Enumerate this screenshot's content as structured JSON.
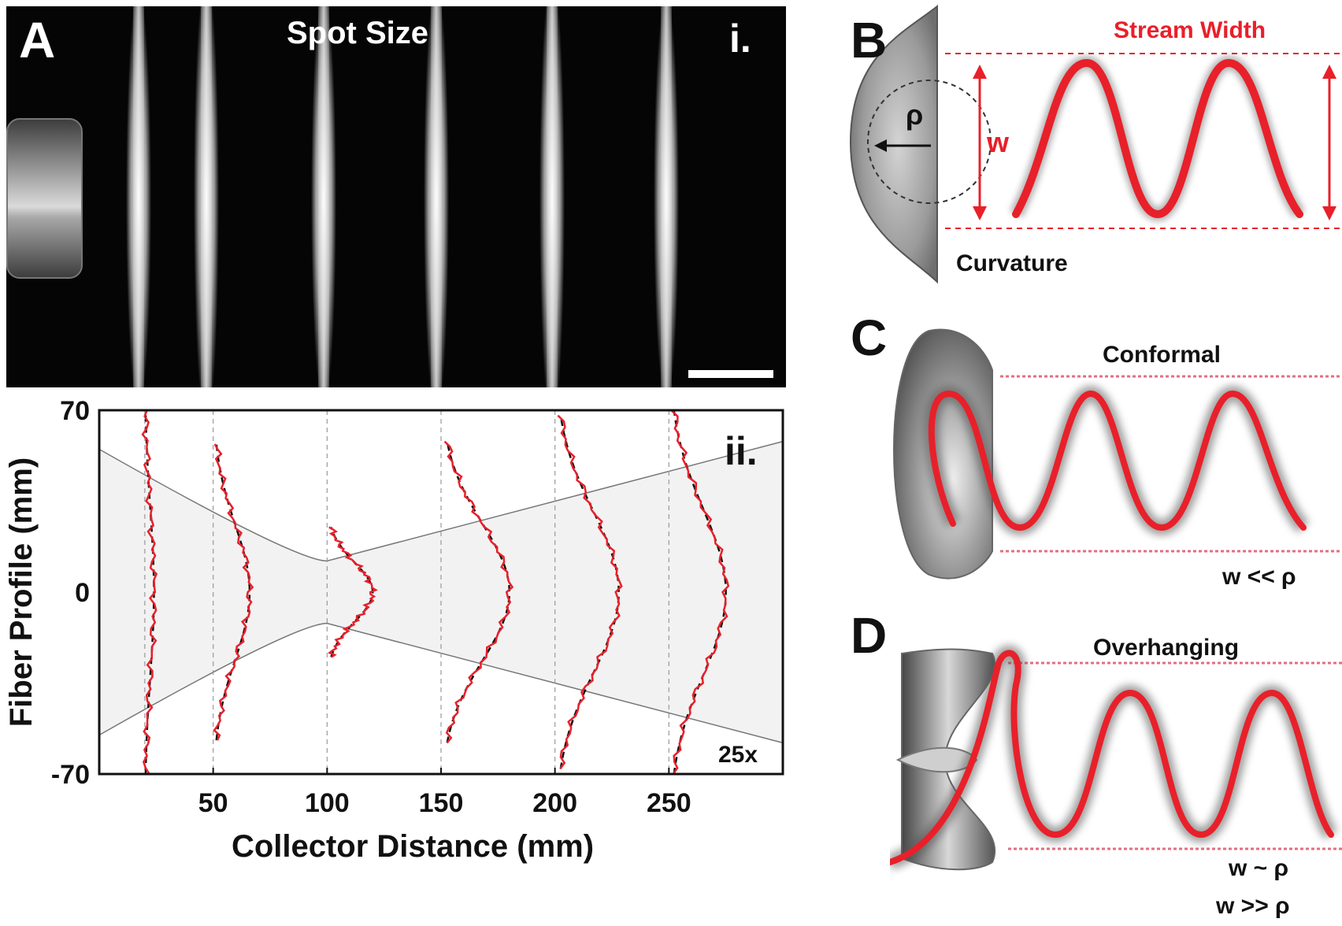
{
  "panel_a": {
    "letter": "A",
    "sub_i": "i.",
    "sub_ii": "ii.",
    "photo_title": "Spot Size",
    "scale_note": "25x"
  },
  "panel_b": {
    "letter": "B",
    "stream_width": "Stream Width",
    "w": "w",
    "rho": "ρ",
    "curvature": "Curvature"
  },
  "panel_c": {
    "letter": "C",
    "label": "Conformal",
    "relation": "w << ρ"
  },
  "panel_d": {
    "letter": "D",
    "label": "Overhanging",
    "relation1": "w ~ ρ",
    "relation2": "w >> ρ"
  },
  "colors": {
    "fiber_red": "#e8202a",
    "fit_dash": "#111111",
    "envelope_fill": "#f2f2f2"
  },
  "chart_data": {
    "type": "line",
    "title": "",
    "xlabel": "Collector Distance (mm)",
    "ylabel": "Fiber Profile (mm)",
    "xlim": [
      0,
      300
    ],
    "ylim": [
      -70,
      70
    ],
    "x_ticks": [
      50,
      100,
      150,
      200,
      250
    ],
    "y_ticks": [
      70,
      0,
      -70
    ],
    "grid": false,
    "profiles": [
      {
        "distance": 20,
        "peak_offset": 4,
        "half_extent": 70
      },
      {
        "distance": 50,
        "peak_offset": 16,
        "half_extent": 57
      },
      {
        "distance": 100,
        "peak_offset": 20,
        "half_extent": 25
      },
      {
        "distance": 150,
        "peak_offset": 30,
        "half_extent": 58
      },
      {
        "distance": 200,
        "peak_offset": 28,
        "half_extent": 68
      },
      {
        "distance": 250,
        "peak_offset": 25,
        "half_extent": 70
      }
    ],
    "envelope": {
      "x": [
        0,
        100,
        300
      ],
      "y_upper": [
        55,
        12,
        58
      ],
      "y_lower": [
        -55,
        -12,
        -58
      ]
    }
  }
}
